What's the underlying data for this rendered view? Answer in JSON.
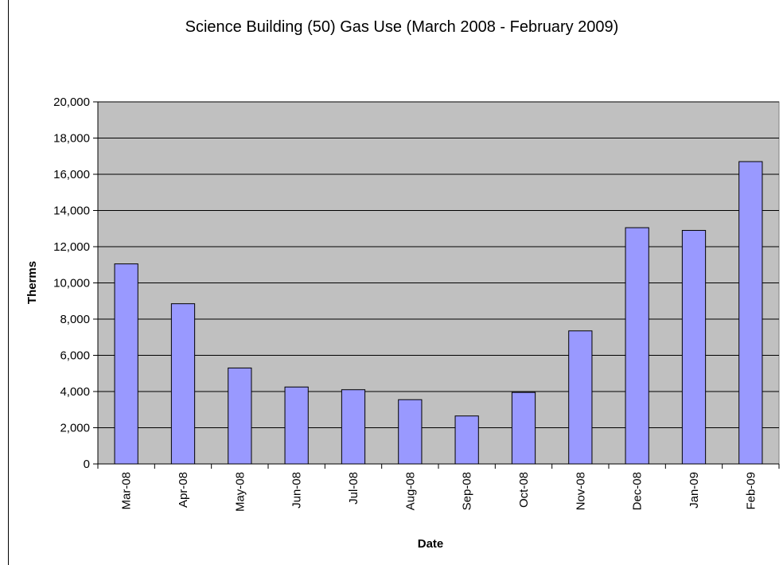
{
  "chart_data": {
    "type": "bar",
    "title": "Science Building (50) Gas Use (March 2008 - February 2009)",
    "xlabel": "Date",
    "ylabel": "Therms",
    "categories": [
      "Mar-08",
      "Apr-08",
      "May-08",
      "Jun-08",
      "Jul-08",
      "Aug-08",
      "Sep-08",
      "Oct-08",
      "Nov-08",
      "Dec-08",
      "Jan-09",
      "Feb-09"
    ],
    "values": [
      11050,
      8850,
      5300,
      4250,
      4100,
      3550,
      2650,
      3950,
      7350,
      13050,
      12900,
      16700
    ],
    "ylim": [
      0,
      20000
    ],
    "yticks": [
      0,
      2000,
      4000,
      6000,
      8000,
      10000,
      12000,
      14000,
      16000,
      18000,
      20000
    ],
    "ytick_labels": [
      "0",
      "2,000",
      "4,000",
      "6,000",
      "8,000",
      "10,000",
      "12,000",
      "14,000",
      "16,000",
      "18,000",
      "20,000"
    ],
    "grid": true,
    "legend": "none",
    "colors": {
      "bar_fill": "#9999ff",
      "bar_stroke": "#000000",
      "plot_background": "#c0c0c0",
      "gridline": "#000000"
    }
  }
}
